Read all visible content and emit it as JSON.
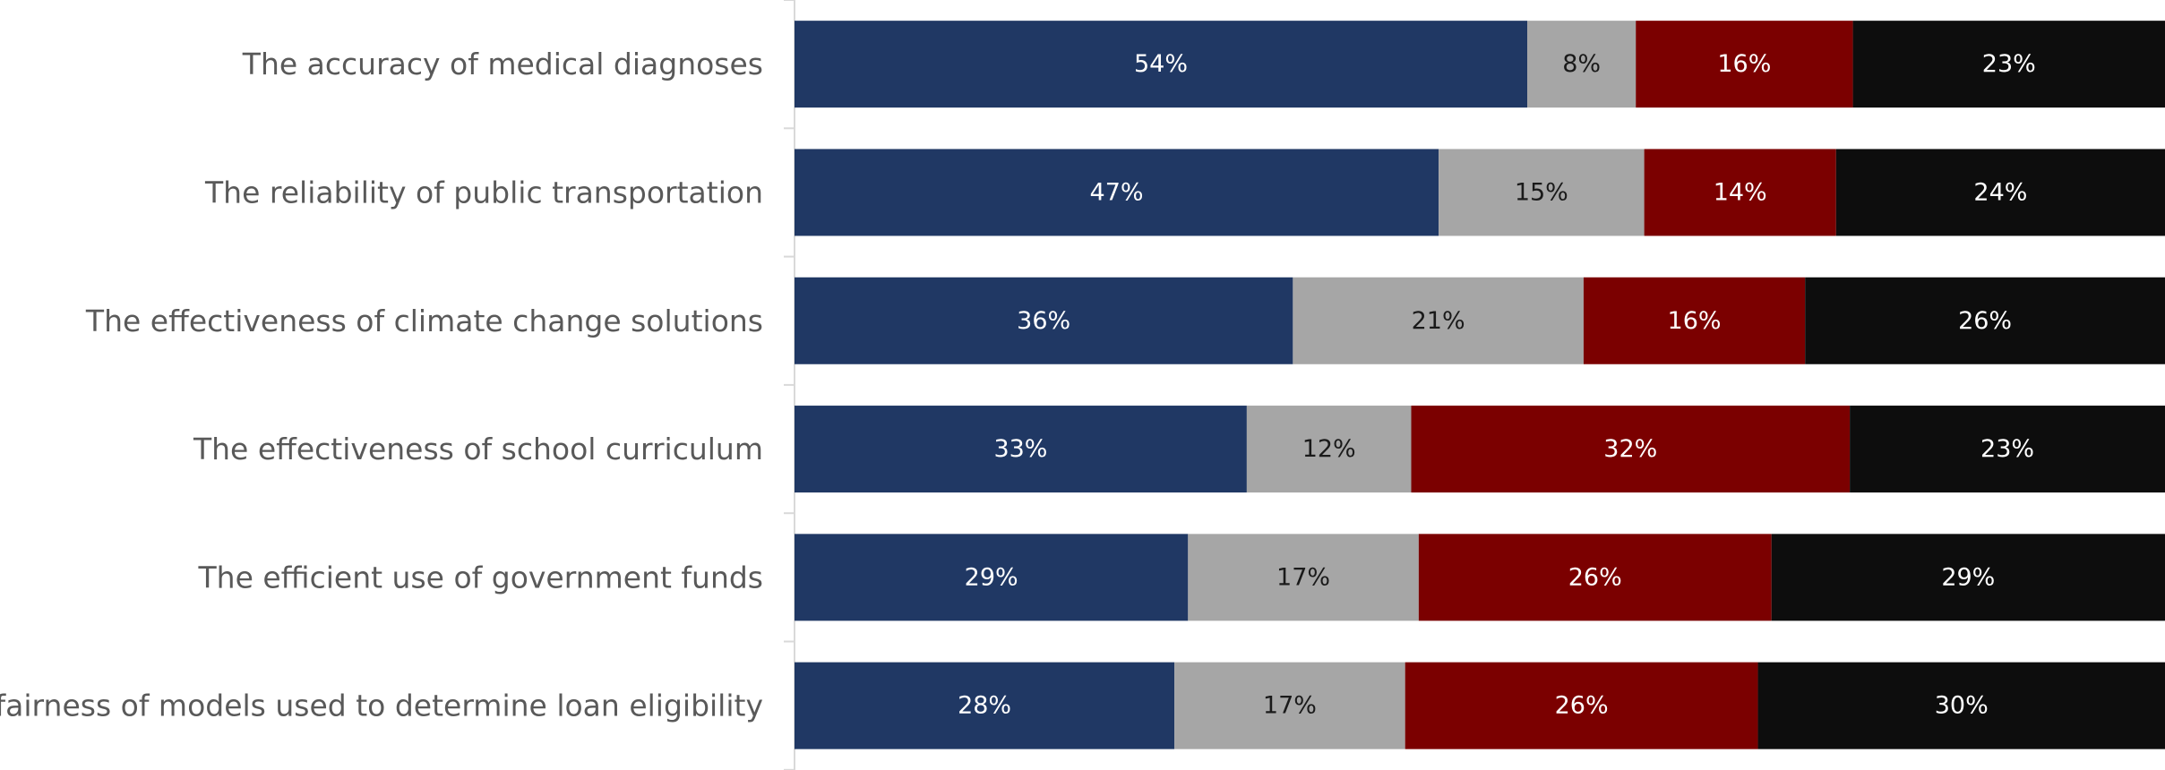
{
  "chart_data": {
    "type": "bar",
    "orientation": "horizontal",
    "stacked": true,
    "categories": [
      "The accuracy of medical diagnoses",
      "The reliability of public transportation",
      "The effectiveness of climate change solutions",
      "The effectiveness of school curriculum",
      "The efficient use of government funds",
      "The fairness of models used to determine loan eligibility"
    ],
    "series": [
      {
        "values": [
          54,
          47,
          36,
          33,
          29,
          28
        ],
        "color": "#203864",
        "label_color": "#ffffff"
      },
      {
        "values": [
          8,
          15,
          21,
          12,
          17,
          17
        ],
        "color": "#a6a6a6",
        "label_color": "#1a1a1a"
      },
      {
        "values": [
          16,
          14,
          16,
          32,
          26,
          26
        ],
        "color": "#7b0000",
        "label_color": "#ffffff"
      },
      {
        "values": [
          23,
          24,
          26,
          23,
          29,
          30
        ],
        "color": "#0d0d0d",
        "label_color": "#ffffff"
      }
    ],
    "value_suffix": "%",
    "title": "",
    "xlabel": "",
    "ylabel": "",
    "legend": "none",
    "grid": false
  }
}
